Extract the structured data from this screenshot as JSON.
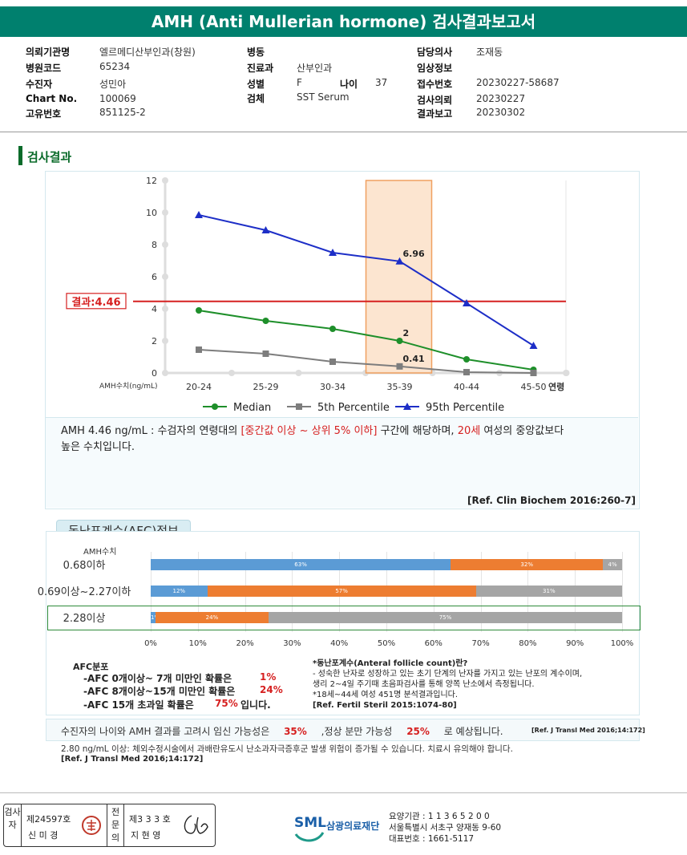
{
  "title": "AMH (Anti Mullerian hormone) 검사결과보고서",
  "info": {
    "hospital_label": "의뢰기관명",
    "hospital_value": "엘르메디산부인과(창원)",
    "hospital_code_label": "병원코드",
    "hospital_code_value": "65234",
    "patient_label": "수진자",
    "patient_value": "성민아",
    "chart_label": "Chart No.",
    "chart_value": "100069",
    "id_label": "고유번호",
    "id_value": "851125-2",
    "ward_label": "병동",
    "ward_value": "",
    "dept_label": "진료과",
    "dept_value": "산부인과",
    "sex_label": "성별",
    "sex_value": "F",
    "age_label": "나이",
    "age_value": "37",
    "specimen_label": "검체",
    "specimen_value": "SST Serum",
    "doctor_label": "담당의사",
    "doctor_value": "조재동",
    "clinical_label": "임상정보",
    "clinical_value": "",
    "receipt_label": "접수번호",
    "receipt_value": "20230227-58687",
    "request_label": "검사의뢰",
    "request_value": "20230227",
    "report_label": "결과보고",
    "report_value": "20230302"
  },
  "section_title": "검사결과",
  "chart_data": {
    "type": "line",
    "categories": [
      "20-24",
      "25-29",
      "30-34",
      "35-39",
      "40-44",
      "45-50"
    ],
    "x_end_label": "연령",
    "ylabel": "AMH수치(ng/mL)",
    "ylim": [
      0,
      12
    ],
    "yticks": [
      0,
      2,
      4,
      6,
      8,
      10,
      12
    ],
    "highlight_category": "35-39",
    "result_line": {
      "value": 4.46,
      "label": "결과:4.46",
      "color": "#d62020"
    },
    "series": [
      {
        "name": "Median",
        "color": "#1e8f2a",
        "marker": "circle",
        "values": [
          3.9,
          3.25,
          2.75,
          2.0,
          0.85,
          0.2
        ]
      },
      {
        "name": "5th Percentile",
        "color": "#7d7d7d",
        "marker": "square",
        "values": [
          1.45,
          1.2,
          0.7,
          0.41,
          0.05,
          0.0
        ]
      },
      {
        "name": "95th Percentile",
        "color": "#1d2ec7",
        "marker": "triangle",
        "values": [
          9.85,
          8.9,
          7.5,
          6.96,
          4.35,
          1.7
        ]
      }
    ],
    "annotations": [
      {
        "series": "95th Percentile",
        "category": "35-39",
        "text": "6.96"
      },
      {
        "series": "Median",
        "category": "35-39",
        "text": "2"
      },
      {
        "series": "5th Percentile",
        "category": "35-39",
        "text": "0.41"
      }
    ]
  },
  "interpretation": {
    "p1": "AMH   4.46 ng/mL : 수검자의 연령대의 ",
    "r1": "[중간값 이상 ~ 상위 5% 이하]",
    "p2": "  구간에 해당하며, ",
    "r2": "20세",
    "p3": " 여성의 중앙값보다",
    "line2": "높은 수치입니다.",
    "ref": "[Ref. Clin Biochem 2016:260-7]"
  },
  "afc": {
    "tab": "동난포계수(AFC)정보",
    "column_label": "AMH수치",
    "rows": [
      {
        "label": "0.68이하",
        "segments": [
          {
            "value": 63,
            "text": "63%",
            "color": "#5b9bd5"
          },
          {
            "value": 32,
            "text": "32%",
            "color": "#ed7d31"
          },
          {
            "value": 4,
            "text": "4%",
            "color": "#a5a5a5"
          }
        ]
      },
      {
        "label": "0.69이상~2.27이하",
        "segments": [
          {
            "value": 12,
            "text": "12%",
            "color": "#5b9bd5"
          },
          {
            "value": 57,
            "text": "57%",
            "color": "#ed7d31"
          },
          {
            "value": 31,
            "text": "31%",
            "color": "#a5a5a5"
          }
        ]
      },
      {
        "label": "2.28이상",
        "segments": [
          {
            "value": 1,
            "text": "1%",
            "color": "#5b9bd5"
          },
          {
            "value": 24,
            "text": "24%",
            "color": "#ed7d31"
          },
          {
            "value": 75,
            "text": "75%",
            "color": "#a5a5a5"
          }
        ]
      }
    ],
    "highlight_row": 2,
    "xticks": [
      "0%",
      "10%",
      "20%",
      "30%",
      "40%",
      "50%",
      "60%",
      "70%",
      "80%",
      "90%",
      "100%"
    ],
    "dist_title": "AFC분포",
    "dist": [
      {
        "text": "-AFC  0개이상~ 7개 미만인 확률은",
        "value": "1%"
      },
      {
        "text": "-AFC  8개이상~15개 미만인 확률은",
        "value": "24%"
      },
      {
        "text": "-AFC  15개 초과일 확률은",
        "value": "75%",
        "suffix": "입니다."
      }
    ],
    "def_title": "*동난포계수(Anteral follicle count)란?",
    "def_line1": "- 성숙한 난자로 성장하고 있는 초기 단계의 난자를 가지고 있는 난포의 계수이며,",
    "def_line2": "  생리 2~4일 주기때 초음파검사를 통해 양쪽 난소에서 측정됩니다.",
    "def_line3": "*18세~44세 여성 451명 분석결과입니다.",
    "def_ref": "[Ref. Fertil Steril 2015:1074-80]"
  },
  "pregnancy": {
    "t1": "수진자의 나이와 AMH 결과를 고려시 임신 가능성은",
    "v1": "35%",
    "t2": ",정상 분만 가능성",
    "v2": "25%",
    "t3": "로 예상됩니다.",
    "ref": "[Ref. J Transl Med 2016;14:172]"
  },
  "footnote": {
    "line": "2.80  ng/mL  이상: 체외수정시술에서 과배란유도시 난소과자극증후군 발생 위험이 증가될 수 있습니다. 치료시 유의해야 합니다.",
    "ref": "[Ref. J Transl Med 2016;14:172]"
  },
  "signature": {
    "examiner_label": "검사자",
    "examiner_no": "제24597호",
    "examiner_name": "신 미 경",
    "specialist_label": "전문의",
    "specialist_no": "제3 3 3 호",
    "specialist_name": "지 현 영"
  },
  "org": {
    "logo": "SML",
    "name": "삼광의료재단",
    "code_line": "요양기관 : 1 1 3 6 5 2 0 0",
    "address_line": "서울특별시 서초구 양재동 9-60",
    "phone_line": "대표번호 : 1661-5117"
  }
}
